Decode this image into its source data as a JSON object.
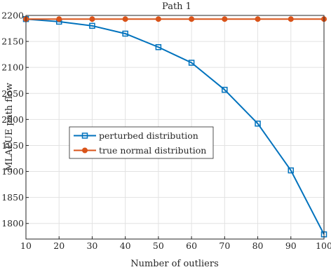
{
  "chart_data": {
    "type": "line",
    "title": "Path 1",
    "xlabel": "Number of outliers",
    "ylabel": "MLAPUE path flow",
    "x": [
      10,
      20,
      30,
      40,
      50,
      60,
      70,
      80,
      90,
      100
    ],
    "xlim": [
      10,
      100
    ],
    "ylim": [
      1770,
      2200
    ],
    "xticks": [
      10,
      20,
      30,
      40,
      50,
      60,
      70,
      80,
      90,
      100
    ],
    "yticks": [
      1800,
      1850,
      1900,
      1950,
      2000,
      2050,
      2100,
      2150,
      2200
    ],
    "grid": true,
    "legend_position": "center-left",
    "series": [
      {
        "name": "perturbed distribution",
        "color": "#0072BD",
        "marker": "square",
        "values": [
          2193,
          2188,
          2180,
          2165,
          2139,
          2109,
          2057,
          1992,
          1902,
          1779
        ]
      },
      {
        "name": "true normal distribution",
        "color": "#D95319",
        "marker": "circle",
        "values": [
          2193,
          2193,
          2193,
          2193,
          2193,
          2193,
          2193,
          2193,
          2193,
          2193
        ]
      }
    ]
  }
}
